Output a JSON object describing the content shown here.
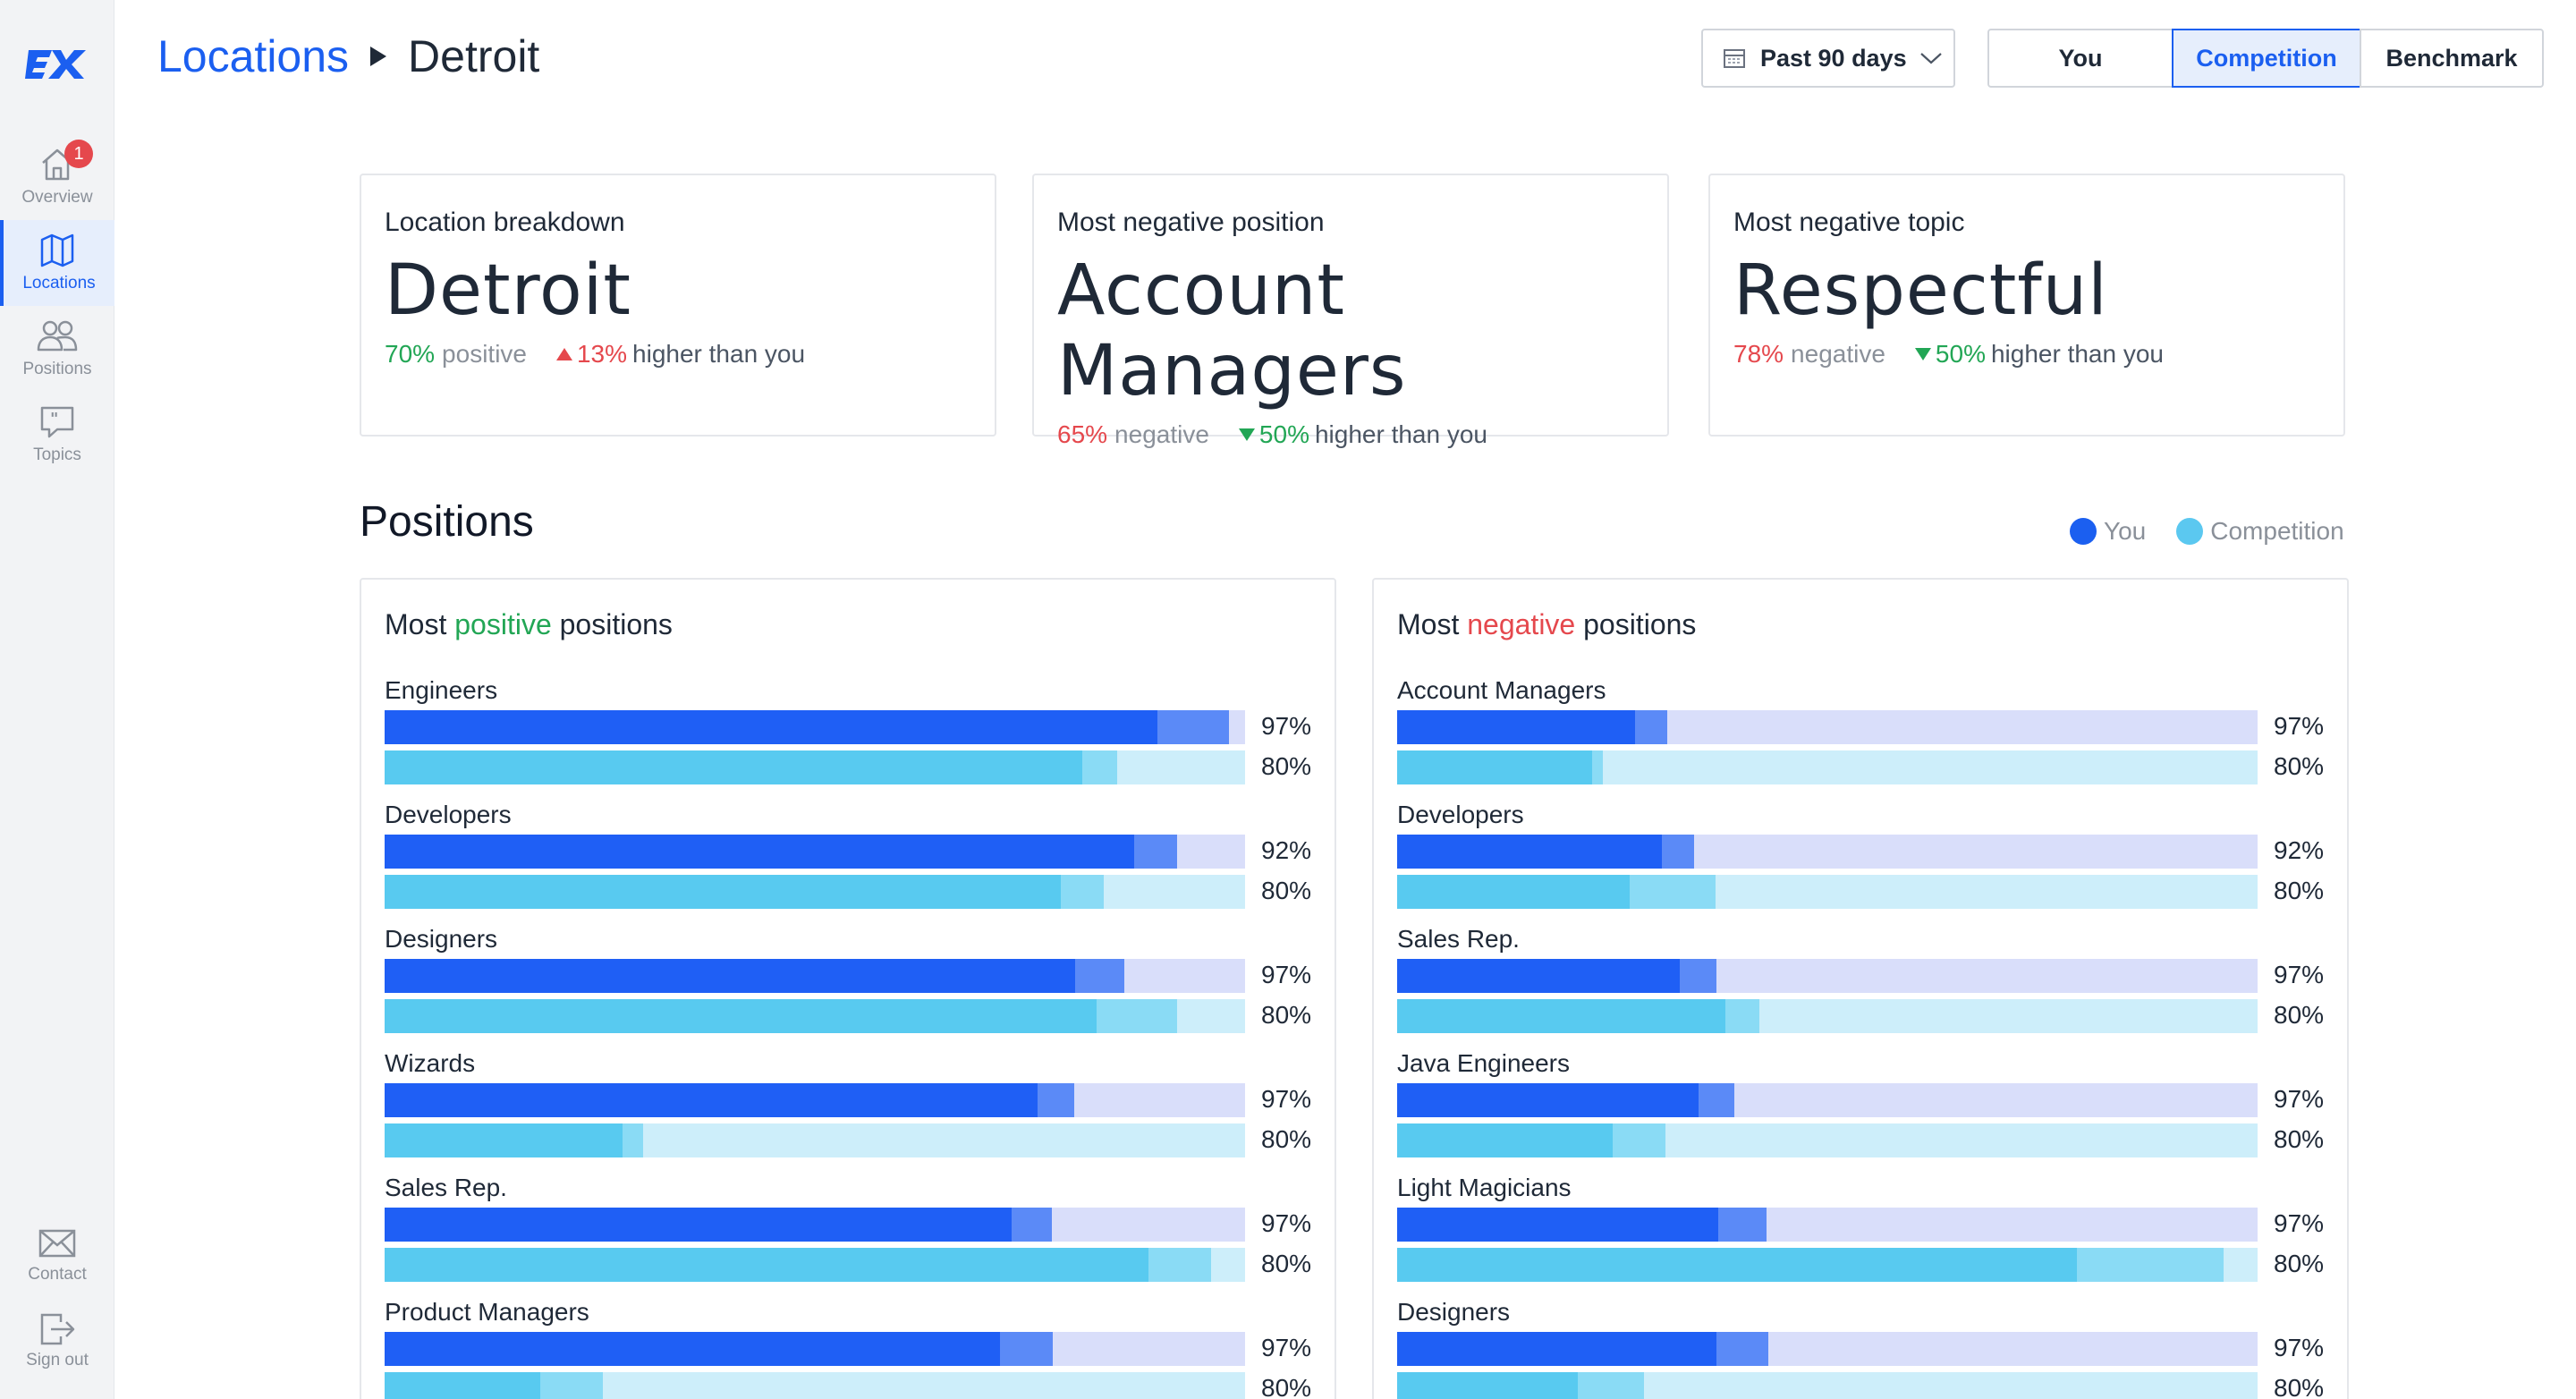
{
  "app": {
    "logo_text": "EX"
  },
  "sidebar": {
    "items": [
      {
        "label": "Overview",
        "badge": "1",
        "icon": "home-icon"
      },
      {
        "label": "Locations",
        "icon": "map-icon",
        "active": true
      },
      {
        "label": "Positions",
        "icon": "people-icon"
      },
      {
        "label": "Topics",
        "icon": "chat-quote-icon"
      }
    ],
    "bottom": [
      {
        "label": "Contact",
        "icon": "mail-icon"
      },
      {
        "label": "Sign out",
        "icon": "sign-out-icon"
      }
    ]
  },
  "header": {
    "breadcrumb_root": "Locations",
    "breadcrumb_current": "Detroit",
    "date_range": "Past 90 days",
    "compare": {
      "options": [
        "You",
        "Competition",
        "Benchmark"
      ],
      "selected": "Competition"
    }
  },
  "summary": [
    {
      "title": "Location breakdown",
      "value": "Detroit",
      "pct": "70%",
      "pct_word": "positive",
      "pct_type": "positive",
      "delta": "13%",
      "delta_dir": "up",
      "delta_text": "higher than you"
    },
    {
      "title": "Most negative position",
      "value": "Account Managers",
      "pct": "65%",
      "pct_word": "negative",
      "pct_type": "negative",
      "delta": "50%",
      "delta_dir": "down",
      "delta_text": "higher than you"
    },
    {
      "title": "Most negative topic",
      "value": "Respectful",
      "pct": "78%",
      "pct_word": "negative",
      "pct_type": "negative",
      "delta": "50%",
      "delta_dir": "down",
      "delta_text": "higher than you"
    }
  ],
  "positions": {
    "title": "Positions",
    "legend": [
      {
        "name": "You",
        "color": "#1b5ff0"
      },
      {
        "name": "Competition",
        "color": "#5bc8f0"
      }
    ],
    "colors": {
      "you_main": "#1f5ff5",
      "you_light": "#5b8af7",
      "you_track": "#d9defa",
      "comp_main": "#58caf0",
      "comp_light": "#8adbf5",
      "comp_track": "#cdeefa"
    },
    "positive_panel": {
      "title_prefix": "Most",
      "title_word": "positive",
      "title_suffix": "positions",
      "rows": [
        {
          "label": "Engineers",
          "you": {
            "pct": "97%",
            "main": 0.898,
            "extra": 0.083
          },
          "comp": {
            "pct": "80%",
            "main": 0.811,
            "extra": 0.04
          }
        },
        {
          "label": "Developers",
          "you": {
            "pct": "92%",
            "main": 0.871,
            "extra": 0.05
          },
          "comp": {
            "pct": "80%",
            "main": 0.786,
            "extra": 0.05
          }
        },
        {
          "label": "Designers",
          "you": {
            "pct": "97%",
            "main": 0.802,
            "extra": 0.058
          },
          "comp": {
            "pct": "80%",
            "main": 0.827,
            "extra": 0.094
          }
        },
        {
          "label": "Wizards",
          "you": {
            "pct": "97%",
            "main": 0.759,
            "extra": 0.042
          },
          "comp": {
            "pct": "80%",
            "main": 0.277,
            "extra": 0.023
          }
        },
        {
          "label": "Sales Rep.",
          "you": {
            "pct": "97%",
            "main": 0.729,
            "extra": 0.046
          },
          "comp": {
            "pct": "80%",
            "main": 0.888,
            "extra": 0.073
          }
        },
        {
          "label": "Product Managers",
          "you": {
            "pct": "97%",
            "main": 0.715,
            "extra": 0.062
          },
          "comp": {
            "pct": "80%",
            "main": 0.181,
            "extra": 0.073
          }
        }
      ]
    },
    "negative_panel": {
      "title_prefix": "Most",
      "title_word": "negative",
      "title_suffix": "positions",
      "rows": [
        {
          "label": "Account Managers",
          "you": {
            "pct": "97%",
            "main": 0.277,
            "extra": 0.037
          },
          "comp": {
            "pct": "80%",
            "main": 0.227,
            "extra": 0.012
          }
        },
        {
          "label": "Developers",
          "you": {
            "pct": "92%",
            "main": 0.308,
            "extra": 0.037
          },
          "comp": {
            "pct": "80%",
            "main": 0.27,
            "extra": 0.1
          }
        },
        {
          "label": "Sales Rep.",
          "you": {
            "pct": "97%",
            "main": 0.329,
            "extra": 0.042
          },
          "comp": {
            "pct": "80%",
            "main": 0.381,
            "extra": 0.04
          }
        },
        {
          "label": "Java Engineers",
          "you": {
            "pct": "97%",
            "main": 0.35,
            "extra": 0.042
          },
          "comp": {
            "pct": "80%",
            "main": 0.25,
            "extra": 0.062
          }
        },
        {
          "label": "Light Magicians",
          "you": {
            "pct": "97%",
            "main": 0.373,
            "extra": 0.056
          },
          "comp": {
            "pct": "80%",
            "main": 0.79,
            "extra": 0.171
          }
        },
        {
          "label": "Designers",
          "you": {
            "pct": "97%",
            "main": 0.371,
            "extra": 0.06
          },
          "comp": {
            "pct": "80%",
            "main": 0.21,
            "extra": 0.077
          }
        }
      ]
    }
  }
}
